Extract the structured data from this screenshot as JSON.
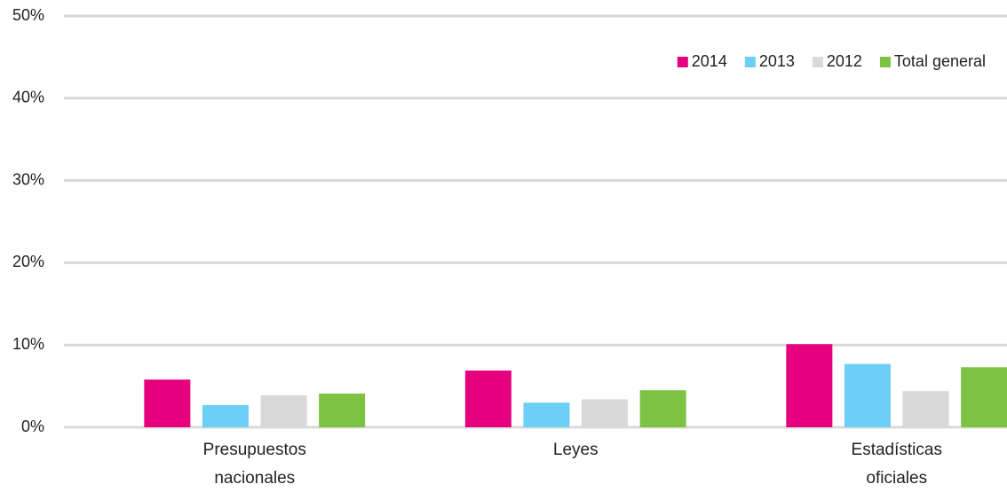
{
  "chart_data": {
    "type": "bar",
    "categories": [
      "Presupuestos nacionales",
      "Leyes",
      "Estadísticas oficiales"
    ],
    "series": [
      {
        "name": "2014",
        "color": "#e6007e",
        "values": [
          5.8,
          6.9,
          10.1
        ]
      },
      {
        "name": "2013",
        "color": "#6dcff6",
        "values": [
          2.7,
          3.0,
          7.7
        ]
      },
      {
        "name": "2012",
        "color": "#d9d9d9",
        "values": [
          3.9,
          3.4,
          4.4
        ]
      },
      {
        "name": "Total general",
        "color": "#7dc242",
        "values": [
          4.1,
          4.5,
          7.3
        ]
      }
    ],
    "ylim": [
      0,
      50
    ],
    "yticks": [
      {
        "value": 0,
        "label": "0%"
      },
      {
        "value": 10,
        "label": "10%"
      },
      {
        "value": 20,
        "label": "20%"
      },
      {
        "value": 30,
        "label": "30%"
      },
      {
        "value": 40,
        "label": "40%"
      },
      {
        "value": 50,
        "label": "50%"
      }
    ],
    "grid": true,
    "legend": "top-right"
  }
}
